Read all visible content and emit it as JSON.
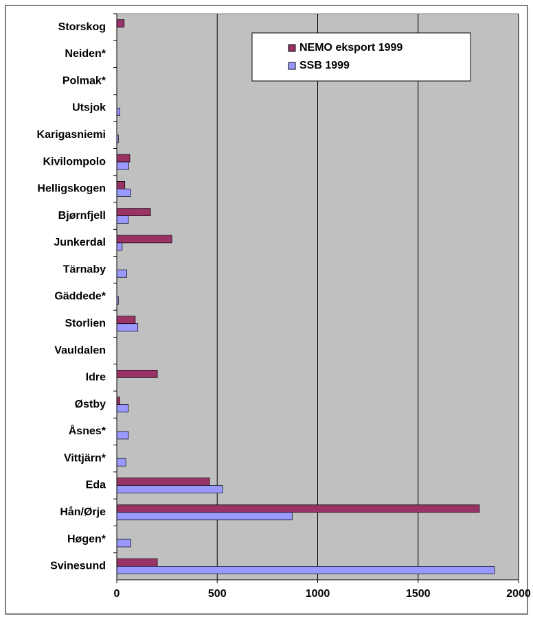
{
  "chart_data": {
    "type": "barh",
    "categories": [
      "Storskog",
      "Neiden*",
      "Polmak*",
      "Utsjok",
      "Karigasniemi",
      "Kivilompolo",
      "Helligskogen",
      "Bjørnfjell",
      "Junkerdal",
      "Tärnaby",
      "Gäddede*",
      "Storlien",
      "Vauldalen",
      "Idre",
      "Østby",
      "Åsnes*",
      "Vittjärn*",
      "Eda",
      "Hån/Ørje",
      "Høgen*",
      "Svinesund"
    ],
    "series": [
      {
        "name": "NEMO eksport 1999",
        "color": "#993366",
        "values": [
          37,
          0,
          0,
          0,
          0,
          65,
          40,
          168,
          274,
          0,
          0,
          92,
          0,
          202,
          15,
          0,
          0,
          462,
          1805,
          0,
          202
        ]
      },
      {
        "name": "SSB 1999",
        "color": "#9999ff",
        "values": [
          0,
          0,
          0,
          15,
          8,
          60,
          70,
          58,
          27,
          50,
          8,
          105,
          0,
          0,
          58,
          58,
          45,
          527,
          873,
          70,
          1880
        ]
      }
    ],
    "xlim": [
      0,
      2000
    ],
    "xticks": [
      0,
      500,
      1000,
      1500,
      2000
    ],
    "grid": true,
    "legend": "top-right"
  }
}
